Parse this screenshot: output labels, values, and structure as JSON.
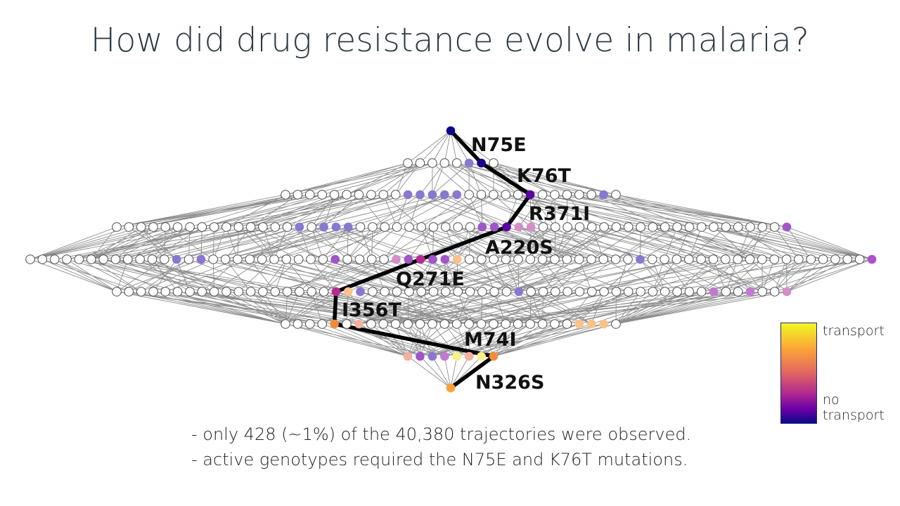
{
  "title": "How did drug resistance evolve in malaria?",
  "mutations": [
    "N75E",
    "K76T",
    "R371I",
    "A220S",
    "Q271E",
    "I356T",
    "M74I",
    "N326S"
  ],
  "notes": [
    "- only 428 (~1%) of the 40,380 trajectories were observed.",
    "- active genotypes required the N75E and K76T mutations."
  ],
  "legend": {
    "top": "transport",
    "bottom": "no transport",
    "colors": [
      "#f0f921",
      "#fca636",
      "#e16462",
      "#b12a90",
      "#6a00a8",
      "#0d0887"
    ]
  },
  "levels": [
    1,
    8,
    28,
    56,
    70,
    56,
    28,
    8,
    1
  ],
  "colored_nodes": [
    {
      "level": 0,
      "index": 0,
      "color": "#0d0887"
    },
    {
      "level": 1,
      "index": 5,
      "color": "#8a77cf"
    },
    {
      "level": 1,
      "index": 6,
      "color": "#16078e"
    },
    {
      "level": 2,
      "index": 10,
      "color": "#8a77cf"
    },
    {
      "level": 2,
      "index": 11,
      "color": "#8a77cf"
    },
    {
      "level": 2,
      "index": 12,
      "color": "#8a77cf"
    },
    {
      "level": 2,
      "index": 13,
      "color": "#8a77cf"
    },
    {
      "level": 2,
      "index": 14,
      "color": "#8a77cf"
    },
    {
      "level": 2,
      "index": 20,
      "color": "#5b02a3"
    },
    {
      "level": 2,
      "index": 26,
      "color": "#8a77cf"
    },
    {
      "level": 3,
      "index": 15,
      "color": "#8a77cf"
    },
    {
      "level": 3,
      "index": 17,
      "color": "#8a77cf"
    },
    {
      "level": 3,
      "index": 18,
      "color": "#8a77cf"
    },
    {
      "level": 3,
      "index": 19,
      "color": "#8a77cf"
    },
    {
      "level": 3,
      "index": 30,
      "color": "#a055c9"
    },
    {
      "level": 3,
      "index": 31,
      "color": "#a055c9"
    },
    {
      "level": 3,
      "index": 32,
      "color": "#5b02a3"
    },
    {
      "level": 3,
      "index": 33,
      "color": "#d28fc8"
    },
    {
      "level": 3,
      "index": 34,
      "color": "#d28fc8"
    },
    {
      "level": 3,
      "index": 55,
      "color": "#a055c9"
    },
    {
      "level": 4,
      "index": 12,
      "color": "#8a77cf"
    },
    {
      "level": 4,
      "index": 14,
      "color": "#8a77cf"
    },
    {
      "level": 4,
      "index": 25,
      "color": "#a055c9"
    },
    {
      "level": 4,
      "index": 30,
      "color": "#d28fc8"
    },
    {
      "level": 4,
      "index": 31,
      "color": "#a055c9"
    },
    {
      "level": 4,
      "index": 32,
      "color": "#b52c8e"
    },
    {
      "level": 4,
      "index": 33,
      "color": "#a055c9"
    },
    {
      "level": 4,
      "index": 34,
      "color": "#a055c9"
    },
    {
      "level": 4,
      "index": 35,
      "color": "#f8c28a"
    },
    {
      "level": 4,
      "index": 50,
      "color": "#8a77cf"
    },
    {
      "level": 4,
      "index": 69,
      "color": "#b04fce"
    },
    {
      "level": 5,
      "index": 18,
      "color": "#b52c8e"
    },
    {
      "level": 5,
      "index": 19,
      "color": "#f8c28a"
    },
    {
      "level": 5,
      "index": 20,
      "color": "#8a77cf"
    },
    {
      "level": 5,
      "index": 33,
      "color": "#8a77cf"
    },
    {
      "level": 5,
      "index": 49,
      "color": "#c07ad0"
    },
    {
      "level": 5,
      "index": 52,
      "color": "#c07ad0"
    },
    {
      "level": 5,
      "index": 55,
      "color": "#d28fc8"
    },
    {
      "level": 6,
      "index": 4,
      "color": "#f28c3a"
    },
    {
      "level": 6,
      "index": 6,
      "color": "#f3b0a0"
    },
    {
      "level": 6,
      "index": 24,
      "color": "#f8c28a"
    },
    {
      "level": 6,
      "index": 25,
      "color": "#f8c28a"
    },
    {
      "level": 6,
      "index": 26,
      "color": "#f8c28a"
    },
    {
      "level": 7,
      "index": 0,
      "color": "#f3b0a0"
    },
    {
      "level": 7,
      "index": 1,
      "color": "#a055c9"
    },
    {
      "level": 7,
      "index": 2,
      "color": "#8a77cf"
    },
    {
      "level": 7,
      "index": 3,
      "color": "#c07ad0"
    },
    {
      "level": 7,
      "index": 4,
      "color": "#f8f08a"
    },
    {
      "level": 7,
      "index": 5,
      "color": "#f3b0a0"
    },
    {
      "level": 7,
      "index": 6,
      "color": "#f8f08a"
    },
    {
      "level": 7,
      "index": 7,
      "color": "#f28c3a"
    },
    {
      "level": 8,
      "index": 0,
      "color": "#f9a03a"
    }
  ],
  "path": [
    {
      "level": 0,
      "index": 0
    },
    {
      "level": 1,
      "index": 6
    },
    {
      "level": 2,
      "index": 20
    },
    {
      "level": 3,
      "index": 32
    },
    {
      "level": 4,
      "index": 32
    },
    {
      "level": 5,
      "index": 18
    },
    {
      "level": 6,
      "index": 4
    },
    {
      "level": 7,
      "index": 7
    },
    {
      "level": 8,
      "index": 0
    }
  ]
}
